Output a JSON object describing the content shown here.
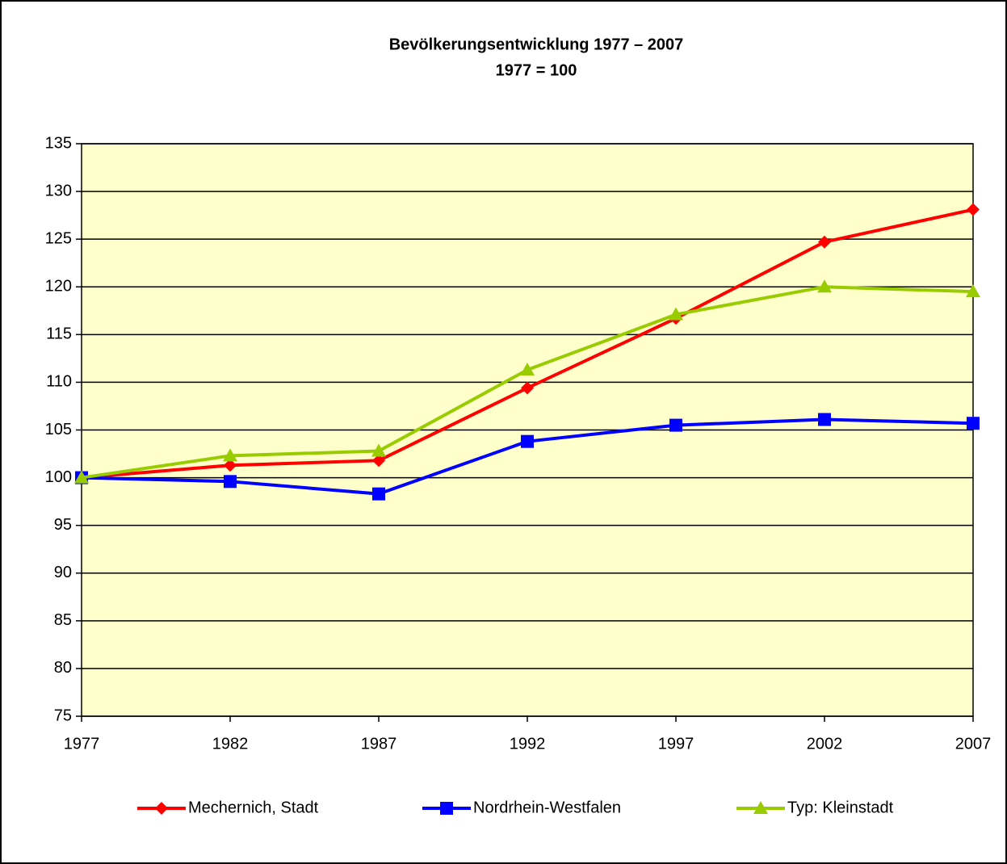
{
  "chart_data": {
    "type": "line",
    "title": "Bevölkerungsentwicklung 1977 – 2007",
    "subtitle": "1977 = 100",
    "x": [
      1977,
      1982,
      1987,
      1992,
      1997,
      2002,
      2007
    ],
    "xlim": [
      1977,
      2007
    ],
    "xticks": [
      1977,
      1982,
      1987,
      1992,
      1997,
      2002,
      2007
    ],
    "ylim": [
      75,
      135
    ],
    "yticks": [
      75,
      80,
      85,
      90,
      95,
      100,
      105,
      110,
      115,
      120,
      125,
      130,
      135
    ],
    "grid": true,
    "legend": "bottom",
    "plot_background": "#ffffcc",
    "series": [
      {
        "name": "Mechernich, Stadt",
        "color": "#ff0000",
        "marker": "diamond",
        "values": [
          100,
          101.3,
          101.8,
          109.4,
          116.7,
          124.7,
          128.1
        ]
      },
      {
        "name": "Nordrhein-Westfalen",
        "color": "#0000ff",
        "marker": "square",
        "values": [
          100,
          99.6,
          98.3,
          103.8,
          105.5,
          106.1,
          105.7
        ]
      },
      {
        "name": "Typ: Kleinstadt",
        "color": "#99cc00",
        "marker": "triangle",
        "values": [
          100,
          102.3,
          102.8,
          111.3,
          117.1,
          120.0,
          119.5
        ]
      }
    ]
  }
}
